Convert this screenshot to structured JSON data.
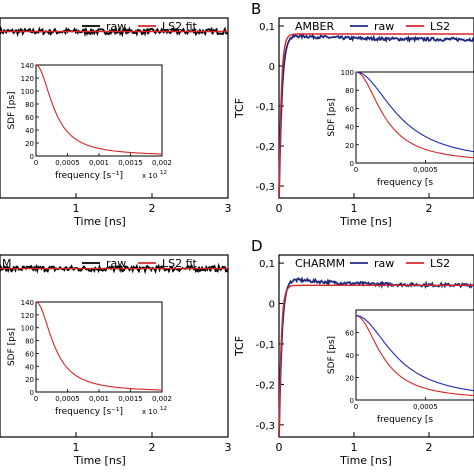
{
  "chart_data": [
    {
      "panel": "A",
      "type": "line",
      "panel_label": "",
      "title": "",
      "xlabel": "Time [ns]",
      "ylabel": "",
      "xlim": [
        0,
        3
      ],
      "ylim": [
        -0.3,
        0.1
      ],
      "xticks": [
        "1",
        "2",
        "3"
      ],
      "yticks": [],
      "legend": {
        "placement": "top-right",
        "entries": [
          "raw",
          "LS2 fit"
        ]
      },
      "series": [
        {
          "name": "raw",
          "color": "#000000",
          "kind": "noisy-flat",
          "level": 0.07,
          "x_start": 0,
          "x_end": 3
        },
        {
          "name": "LS2 fit",
          "color": "#d62728",
          "kind": "flat",
          "level": 0.07,
          "x_start": 0,
          "x_end": 3
        }
      ],
      "inset": {
        "xlabel": "frequency [s⁻¹]",
        "ylabel": "SDF [ps]",
        "xlim": [
          0,
          0.002
        ],
        "ylim": [
          0,
          140
        ],
        "xticks": [
          "0",
          "0,0005",
          "0,001",
          "0,0015",
          "0,002"
        ],
        "yticks": [
          "0",
          "20",
          "40",
          "60",
          "80",
          "100",
          "120",
          "140"
        ],
        "multiplier": "x 10",
        "multiplier_exp": "12",
        "series": [
          {
            "color": "#d62728",
            "peak": 140,
            "decay": 0.0003
          }
        ]
      }
    },
    {
      "panel": "B",
      "type": "line",
      "panel_label": "B",
      "title": "AMBER",
      "xlabel": "Time [ns]",
      "ylabel": "TCF",
      "xlim": [
        0,
        2.6
      ],
      "ylim": [
        -0.33,
        0.12
      ],
      "xticks": [
        "0",
        "1",
        "2"
      ],
      "yticks": [
        "0,1",
        "0",
        "-0,1",
        "-0,2",
        "-0,3"
      ],
      "legend": {
        "placement": "top-right",
        "entries": [
          "raw",
          "LS2"
        ]
      },
      "series": [
        {
          "name": "raw",
          "color": "#1f2a7a",
          "kind": "rise-decay",
          "peak": 0.08,
          "end": 0.066,
          "x_start": 0,
          "x_end": 2.6
        },
        {
          "name": "LS2",
          "color": "#d62728",
          "kind": "rise-flat",
          "level": 0.08,
          "x_start": 0,
          "x_end": 2.6
        }
      ],
      "inset": {
        "xlabel": "frequency [s",
        "ylabel": "SDF [ps]",
        "xlim": [
          0,
          0.00085
        ],
        "ylim": [
          0,
          100
        ],
        "xticks": [
          "0",
          "0,0005"
        ],
        "yticks": [
          "0",
          "20",
          "40",
          "60",
          "80",
          "100"
        ],
        "multiplier": "",
        "multiplier_exp": "",
        "series": [
          {
            "color": "#d62728",
            "peak": 100,
            "decay": 0.00021
          },
          {
            "color": "#1f2ab4",
            "peak": 100,
            "decay": 0.00032
          }
        ]
      }
    },
    {
      "panel": "C",
      "type": "line",
      "panel_label": "",
      "title": "M",
      "xlabel": "Time [ns]",
      "ylabel": "",
      "xlim": [
        0,
        3
      ],
      "ylim": [
        -0.3,
        0.1
      ],
      "xticks": [
        "1",
        "2",
        "3"
      ],
      "yticks": [],
      "legend": {
        "placement": "top-right",
        "entries": [
          "raw",
          "LS2 fit"
        ]
      },
      "series": [
        {
          "name": "raw",
          "color": "#000000",
          "kind": "noisy-flat",
          "level": 0.07,
          "x_start": 0,
          "x_end": 3
        },
        {
          "name": "LS2 fit",
          "color": "#d62728",
          "kind": "flat",
          "level": 0.07,
          "x_start": 0,
          "x_end": 3
        }
      ],
      "inset": {
        "xlabel": "frequency [s⁻¹]",
        "ylabel": "SDF [ps]",
        "xlim": [
          0,
          0.002
        ],
        "ylim": [
          0,
          140
        ],
        "xticks": [
          "0",
          "0,0005",
          "0,001",
          "0,0015",
          "0,002"
        ],
        "yticks": [
          "0",
          "20",
          "40",
          "60",
          "80",
          "100",
          "120",
          "140"
        ],
        "multiplier": "x 10",
        "multiplier_exp": "12",
        "series": [
          {
            "color": "#d62728",
            "peak": 140,
            "decay": 0.0003
          }
        ]
      }
    },
    {
      "panel": "D",
      "type": "line",
      "panel_label": "D",
      "title": "CHARMM",
      "xlabel": "Time [ns]",
      "ylabel": "TCF",
      "xlim": [
        0,
        2.6
      ],
      "ylim": [
        -0.33,
        0.12
      ],
      "xticks": [
        "0",
        "1",
        "2"
      ],
      "yticks": [
        "0,1",
        "0",
        "-0,1",
        "-0,2",
        "-0,3"
      ],
      "legend": {
        "placement": "top-right",
        "entries": [
          "raw",
          "LS2"
        ]
      },
      "series": [
        {
          "name": "raw",
          "color": "#1f2a7a",
          "kind": "rise-decay",
          "peak": 0.065,
          "end": 0.045,
          "x_start": 0,
          "x_end": 2.6
        },
        {
          "name": "LS2",
          "color": "#d62728",
          "kind": "rise-flat",
          "level": 0.045,
          "x_start": 0,
          "x_end": 2.6
        }
      ],
      "inset": {
        "xlabel": "frequency [s",
        "ylabel": "SDF [ps]",
        "xlim": [
          0,
          0.00085
        ],
        "ylim": [
          0,
          80
        ],
        "xticks": [
          "0",
          "0,0005"
        ],
        "yticks": [
          "0",
          "20",
          "40",
          "60"
        ],
        "multiplier": "",
        "multiplier_exp": "",
        "series": [
          {
            "color": "#d62728",
            "peak": 75,
            "decay": 0.0002
          },
          {
            "color": "#1f2ab4",
            "peak": 75,
            "decay": 0.0003
          }
        ]
      }
    }
  ]
}
